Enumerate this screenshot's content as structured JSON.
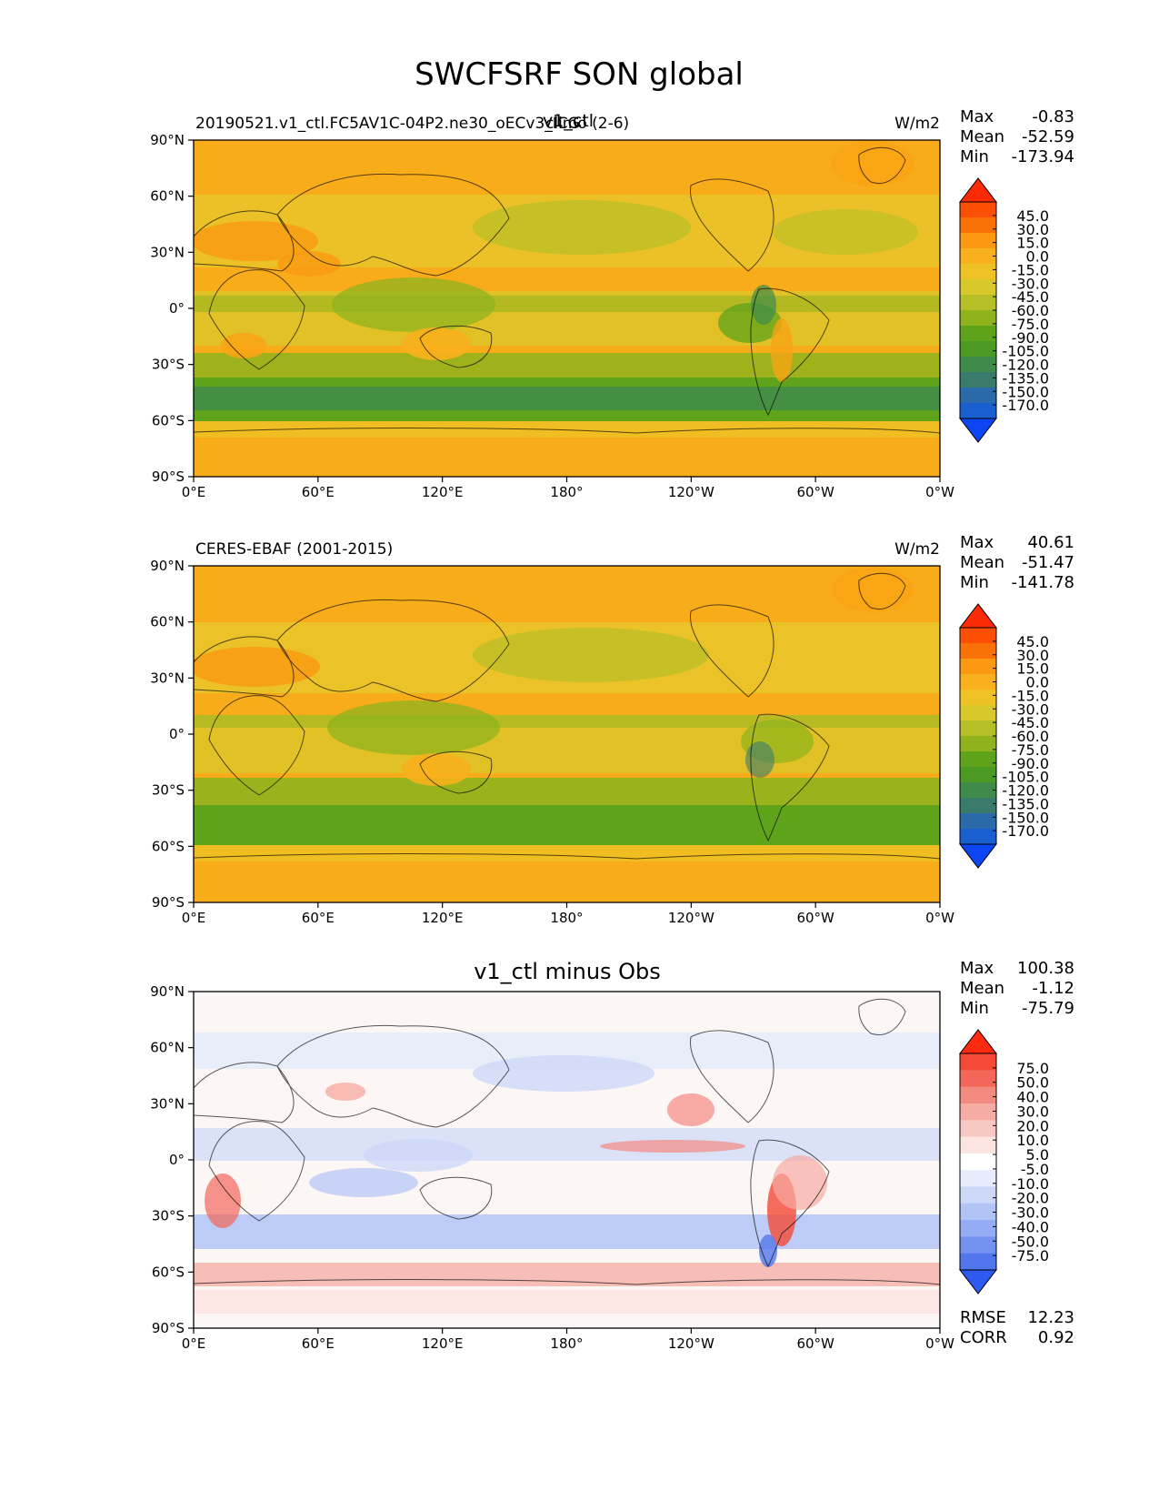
{
  "figure": {
    "title": "SWCFSRF SON global"
  },
  "x_ticks": [
    "0°E",
    "60°E",
    "120°E",
    "180°",
    "120°W",
    "60°W",
    "0°W"
  ],
  "y_ticks": [
    "90°N",
    "60°N",
    "30°N",
    "0°",
    "30°S",
    "60°S",
    "90°S"
  ],
  "panels": [
    {
      "left_label": "20190521.v1_ctl.FC5AV1C-04P2.ne30_oECv3_ICG",
      "overlap_label": "climo (2-6)",
      "center_title": "v1_ctl",
      "units": "W/m2",
      "stats": {
        "max_label": "Max",
        "max": "-0.83",
        "mean_label": "Mean",
        "mean": "-52.59",
        "min_label": "Min",
        "min": "-173.94"
      },
      "colorbar": {
        "labels": [
          "45.0",
          "30.0",
          "15.0",
          "0.0",
          "-15.0",
          "-30.0",
          "-45.0",
          "-60.0",
          "-75.0",
          "-90.0",
          "-105.0",
          "-120.0",
          "-135.0",
          "-150.0",
          "-170.0"
        ],
        "colors": [
          "#fc2a05",
          "#fb4f06",
          "#fa7207",
          "#fb9a12",
          "#f8b01c",
          "#eec225",
          "#d9c82b",
          "#b6bf26",
          "#8fb31d",
          "#5fa31a",
          "#4a9a24",
          "#3f8c4a",
          "#3a7b6e",
          "#2a6aa8",
          "#1a5fd0",
          "#0c45f2"
        ]
      }
    },
    {
      "left_label": "CERES-EBAF (2001-2015)",
      "units": "W/m2",
      "stats": {
        "max_label": "Max",
        "max": "40.61",
        "mean_label": "Mean",
        "mean": "-51.47",
        "min_label": "Min",
        "min": "-141.78"
      },
      "colorbar": {
        "labels": [
          "45.0",
          "30.0",
          "15.0",
          "0.0",
          "-15.0",
          "-30.0",
          "-45.0",
          "-60.0",
          "-75.0",
          "-90.0",
          "-105.0",
          "-120.0",
          "-135.0",
          "-150.0",
          "-170.0"
        ],
        "colors": [
          "#fc2a05",
          "#fb4f06",
          "#fa7207",
          "#fb9a12",
          "#f8b01c",
          "#eec225",
          "#d9c82b",
          "#b6bf26",
          "#8fb31d",
          "#5fa31a",
          "#4a9a24",
          "#3f8c4a",
          "#3a7b6e",
          "#2a6aa8",
          "#1a5fd0",
          "#0c45f2"
        ]
      }
    },
    {
      "center_title": "v1_ctl minus Obs",
      "stats": {
        "max_label": "Max",
        "max": "100.38",
        "mean_label": "Mean",
        "mean": "-1.12",
        "min_label": "Min",
        "min": "-75.79"
      },
      "colorbar": {
        "labels": [
          "75.0",
          "50.0",
          "40.0",
          "30.0",
          "20.0",
          "10.0",
          "5.0",
          "-5.0",
          "-10.0",
          "-20.0",
          "-30.0",
          "-40.0",
          "-50.0",
          "-75.0"
        ],
        "colors": [
          "#ff2a10",
          "#f44a36",
          "#f2675a",
          "#f38a80",
          "#f6aba3",
          "#f9c8c2",
          "#fce4e0",
          "#ffffff",
          "#e6ecfb",
          "#cdd8f8",
          "#b2c4f6",
          "#94acf3",
          "#7592f1",
          "#5276ee",
          "#2f5af2"
        ]
      },
      "rmse_label": "RMSE",
      "rmse": "12.23",
      "corr_label": "CORR",
      "corr": "0.92"
    }
  ],
  "chart_data": [
    {
      "type": "heatmap",
      "title": "v1_ctl",
      "units": "W/m2",
      "x_range": [
        0,
        360
      ],
      "y_range": [
        -90,
        90
      ],
      "color_levels": [
        -170,
        -150,
        -135,
        -120,
        -105,
        -90,
        -75,
        -60,
        -45,
        -30,
        -15,
        0,
        15,
        30,
        45
      ],
      "max": -0.83,
      "mean": -52.59,
      "min": -173.94
    },
    {
      "type": "heatmap",
      "title": "CERES-EBAF (2001-2015)",
      "units": "W/m2",
      "x_range": [
        0,
        360
      ],
      "y_range": [
        -90,
        90
      ],
      "color_levels": [
        -170,
        -150,
        -135,
        -120,
        -105,
        -90,
        -75,
        -60,
        -45,
        -30,
        -15,
        0,
        15,
        30,
        45
      ],
      "max": 40.61,
      "mean": -51.47,
      "min": -141.78
    },
    {
      "type": "heatmap",
      "title": "v1_ctl minus Obs",
      "x_range": [
        0,
        360
      ],
      "y_range": [
        -90,
        90
      ],
      "color_levels": [
        -75,
        -50,
        -40,
        -30,
        -20,
        -10,
        -5,
        5,
        10,
        20,
        30,
        40,
        50,
        75
      ],
      "max": 100.38,
      "mean": -1.12,
      "min": -75.79,
      "rmse": 12.23,
      "corr": 0.92
    }
  ]
}
